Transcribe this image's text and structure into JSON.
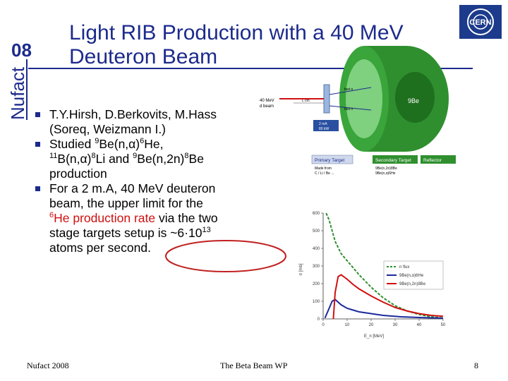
{
  "slide": {
    "title_line1": "Light RIB Production with a 40 MeV",
    "title_line2": "Deuteron Beam",
    "nufact_logo_text": "Nufact",
    "nufact_logo_year": "08",
    "cern_logo_text": "CERN",
    "bullets": {
      "b1_line1": "T.Y.Hirsh, D.Berkovits, M.Hass",
      "b1_line2": "(Soreq, Weizmann I.)",
      "b2_pre": "Studied ",
      "b2_sup1": "9",
      "b2_mid1": "Be(n,α)",
      "b2_sup2": "6",
      "b2_mid2": "He,",
      "b2_sup3": "11",
      "b2_mid3": "B(n,α)",
      "b2_sup4": "8",
      "b2_mid4": "Li  and ",
      "b2_sup5": "9",
      "b2_mid5": "Be(n,2n)",
      "b2_sup6": "8",
      "b2_mid6": "Be",
      "b2_end": "production",
      "b3_line1": "For a 2 m.A, 40 MeV deuteron",
      "b3_line2": "beam, the upper limit for the",
      "b3_sup1": "6",
      "b3_red": "He production rate",
      "b3_after": " via the two",
      "b3_line4_pre": "stage targets setup is ~6·10",
      "b3_sup2": "13",
      "b3_line5": "atoms per second."
    },
    "footer": {
      "left": "Nufact 2008",
      "center": "The Beta Beam WP",
      "page": "8"
    },
    "diagram": {
      "beam_label_1": "40 MeV",
      "beam_label_2": "d beam",
      "fast_n_1": "fast n",
      "fast_n_2": "fast n",
      "l_cm": "L cm",
      "power_1": "2 mA",
      "power_2": "80 kW",
      "be_label": "9Be",
      "legend_primary": "Primary Target",
      "legend_primary_sub1": "Made from",
      "legend_primary_sub2": "C / Li / Be ...",
      "legend_secondary": "Secondary Target",
      "legend_secondary_sub1": "9Be(n,2n)8Be",
      "legend_secondary_sub2": "9Be(n,α)6He",
      "legend_reflector": "Reflector",
      "colors": {
        "shell_outer": "#2f8f2f",
        "shell_inner": "#7fd07f",
        "legend_primary_bg": "#cfd8ec",
        "legend_secondary_bg": "#2f8f2f",
        "legend_reflector_bg": "#2f8f2f"
      }
    }
  },
  "chart_data": {
    "type": "line",
    "xlabel": "E_n [MeV]",
    "ylabel": "σ [mb]",
    "xlim": [
      0,
      20
    ],
    "ylim": [
      0,
      600
    ],
    "x_ticks": [
      "0",
      "10",
      "20",
      "30",
      "40",
      "50"
    ],
    "x_tick_values": [
      0,
      4,
      8,
      12,
      16,
      20
    ],
    "y_ticks": [
      "0",
      "100",
      "200",
      "300",
      "400",
      "500",
      "600"
    ],
    "y_tick_values": [
      0,
      100,
      200,
      300,
      400,
      500,
      600
    ],
    "legend": [
      "n flux",
      "9Be(n,α)6He",
      "9Be(n,2n)8Be"
    ],
    "series": [
      {
        "name": "n flux",
        "color": "#2f8f2f",
        "dash": true,
        "x": [
          0.5,
          1,
          1.5,
          2,
          3,
          4,
          6,
          8,
          10,
          12,
          14,
          16,
          18,
          20
        ],
        "y": [
          600,
          560,
          500,
          440,
          370,
          330,
          250,
          180,
          120,
          75,
          45,
          25,
          12,
          5
        ]
      },
      {
        "name": "9Be(n,α)6He",
        "color": "#1c2a9c",
        "dash": false,
        "x": [
          0.3,
          1,
          1.5,
          2,
          3,
          4,
          5,
          6,
          8,
          10,
          13,
          16,
          20
        ],
        "y": [
          5,
          60,
          100,
          110,
          80,
          60,
          50,
          40,
          30,
          20,
          12,
          8,
          4
        ]
      },
      {
        "name": "9Be(n,2n)8Be",
        "color": "#d01010",
        "dash": false,
        "x": [
          1.7,
          2,
          2.5,
          3,
          4,
          5,
          6,
          8,
          10,
          12,
          14,
          16,
          18,
          20
        ],
        "y": [
          0,
          150,
          240,
          250,
          225,
          195,
          170,
          130,
          95,
          65,
          45,
          30,
          20,
          15
        ]
      }
    ]
  }
}
